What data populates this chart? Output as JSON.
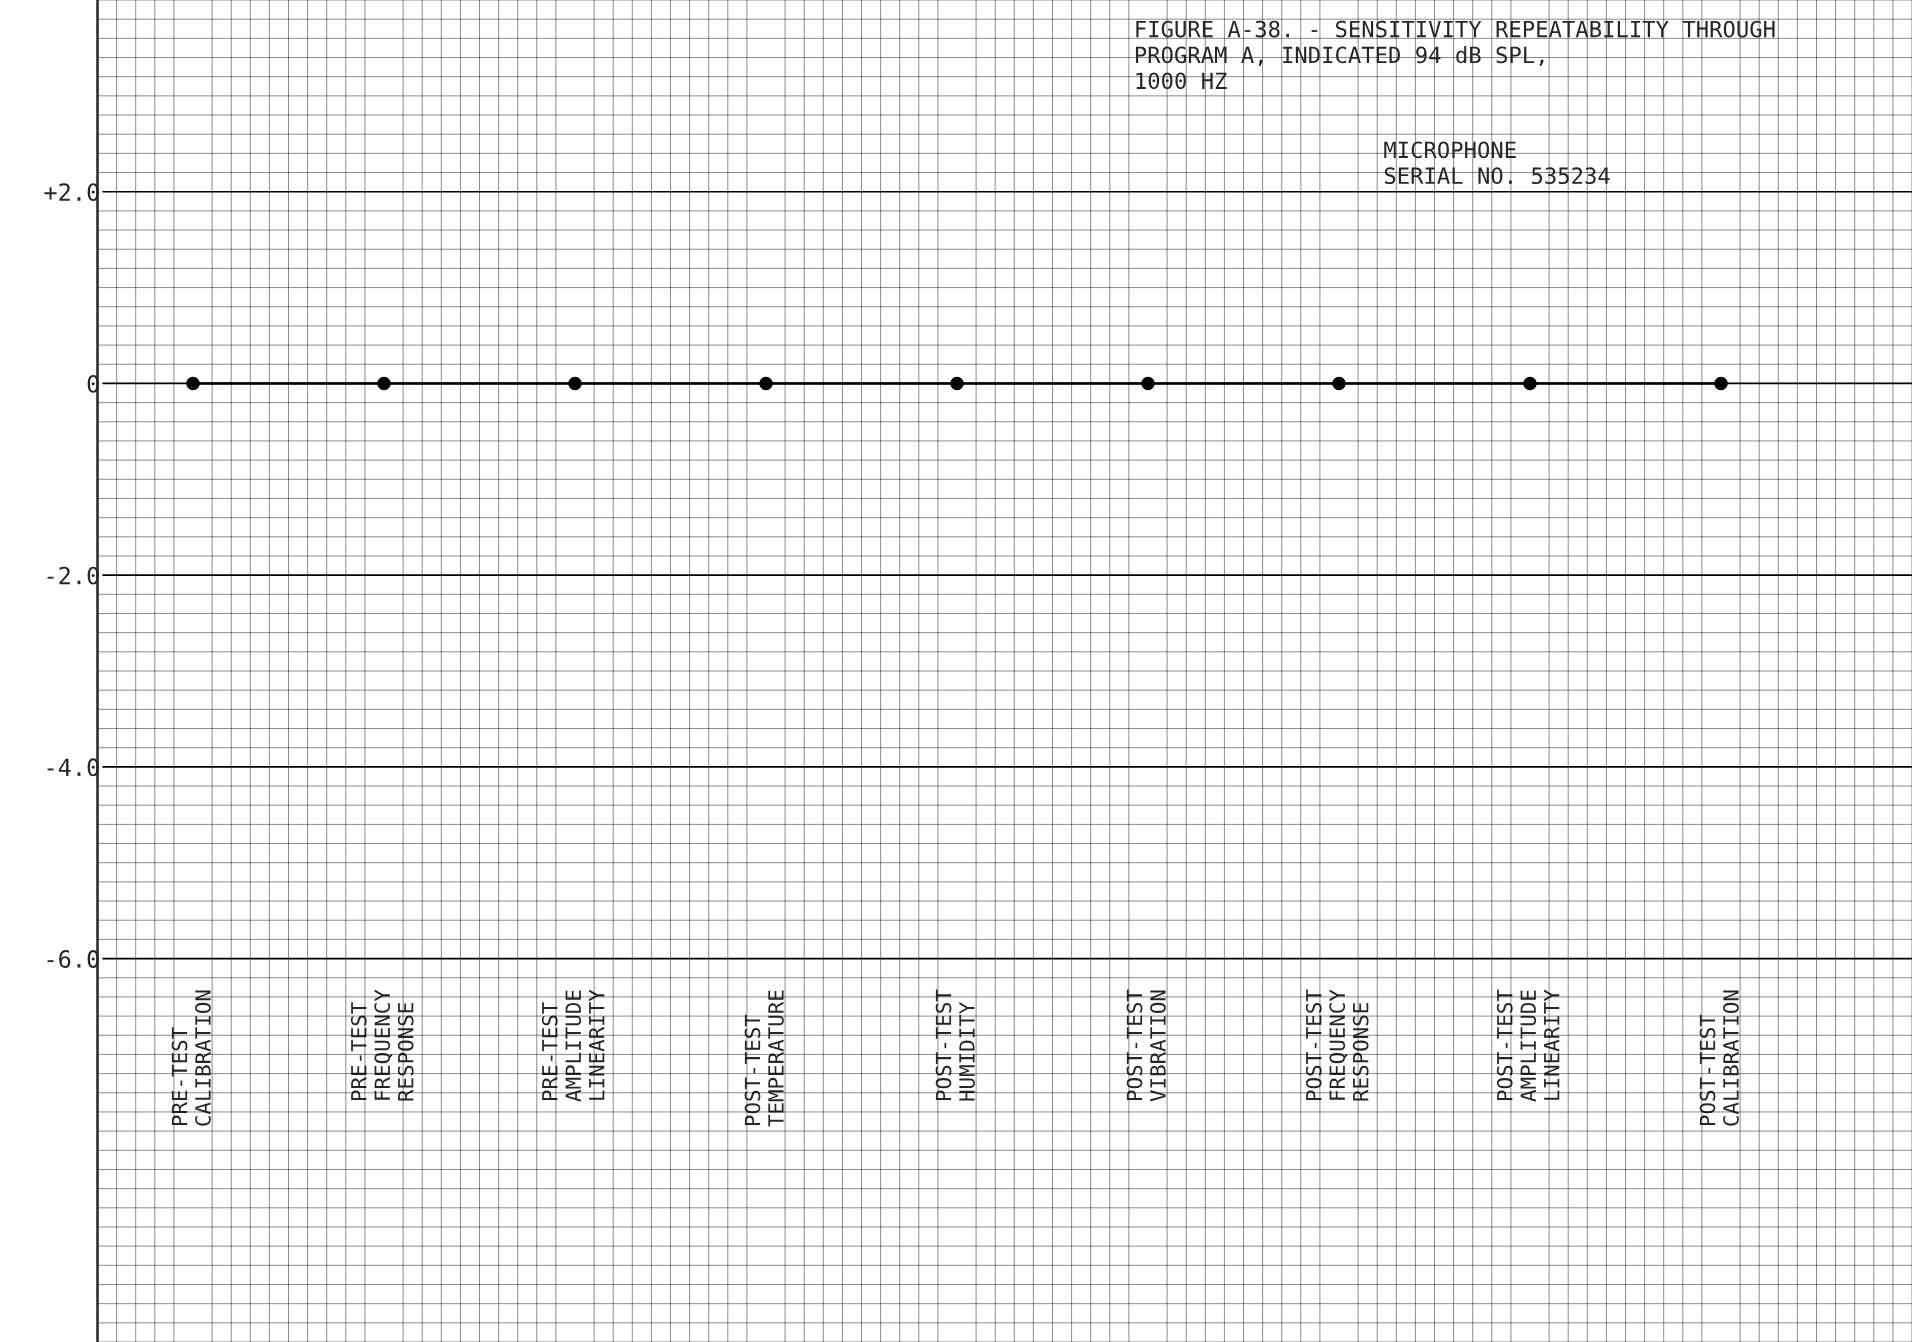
{
  "chart_data": {
    "type": "line",
    "title": "FIGURE A-38. - SENSITIVITY REPEATABILITY THROUGH\nPROGRAM A, INDICATED 94 dB SPL,\n1000 HZ",
    "subtitle": "MICROPHONE\nSERIAL NO. 535234",
    "categories": [
      "PRE-TEST\nCALIBRATION",
      "PRE-TEST\nFREQUENCY\nRESPONSE",
      "PRE-TEST\nAMPLITUDE\nLINEARITY",
      "POST-TEST\nTEMPERATURE",
      "POST-TEST\nHUMIDITY",
      "POST-TEST\nVIBRATION",
      "POST-TEST\nFREQUENCY\nRESPONSE",
      "POST-TEST\nAMPLITUDE\nLINEARITY",
      "POST-TEST\nCALIBRATION"
    ],
    "series": [
      {
        "color": "#000000",
        "values": [
          0,
          0,
          0,
          0,
          0,
          0,
          0,
          0,
          0
        ]
      }
    ],
    "ylim": [
      -10,
      4
    ],
    "yticks": [
      {
        "value": 2,
        "label": "+2.0"
      },
      0,
      {
        "value": -2,
        "label": "-2.0"
      },
      {
        "value": -4,
        "label": "-4.0"
      },
      {
        "value": -6,
        "label": "-6.0"
      }
    ],
    "grid": true,
    "marker": "circle",
    "line_style": "solid",
    "legend": false
  }
}
